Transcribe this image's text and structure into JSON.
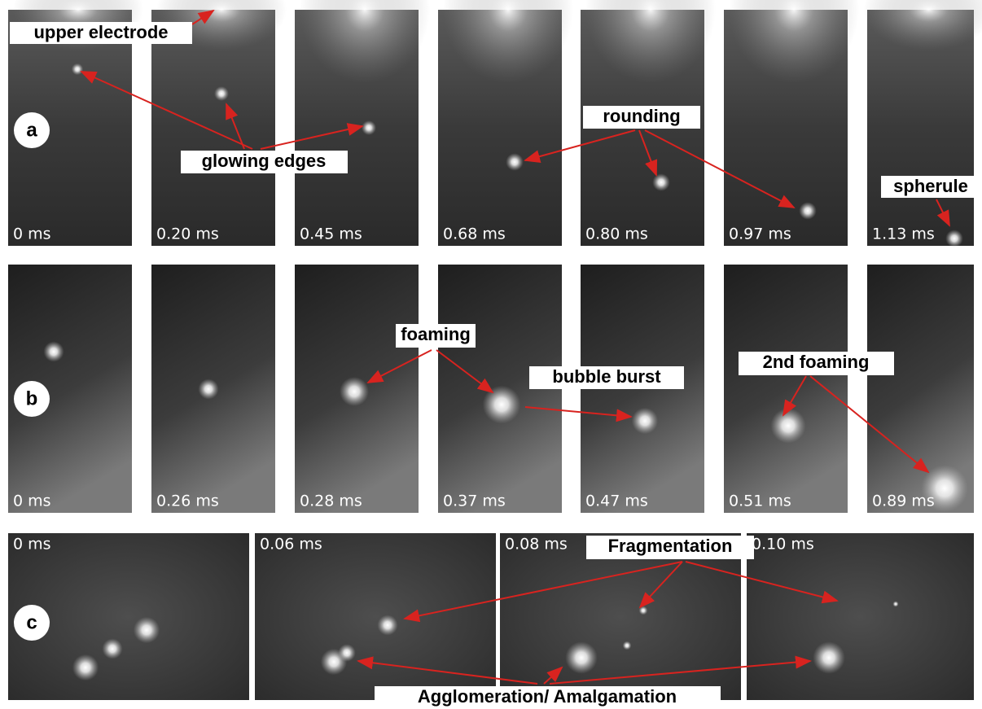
{
  "rows": [
    {
      "label": "a",
      "frames": [
        "0 ms",
        "0.20 ms",
        "0.45 ms",
        "0.68 ms",
        "0.80 ms",
        "0.97 ms",
        "1.13 ms"
      ]
    },
    {
      "label": "b",
      "frames": [
        "0 ms",
        "0.26 ms",
        "0.28 ms",
        "0.37 ms",
        "0.47 ms",
        "0.51 ms",
        "0.89 ms"
      ]
    },
    {
      "label": "c",
      "frames": [
        "0 ms",
        "0.06 ms",
        "0.08 ms",
        "0.10 ms"
      ]
    }
  ],
  "annotations": [
    "upper electrode",
    "glowing edges",
    "rounding",
    "spherule",
    "foaming",
    "bubble burst",
    "2nd foaming",
    "Fragmentation",
    "Agglomeration/ Amalgamation"
  ]
}
